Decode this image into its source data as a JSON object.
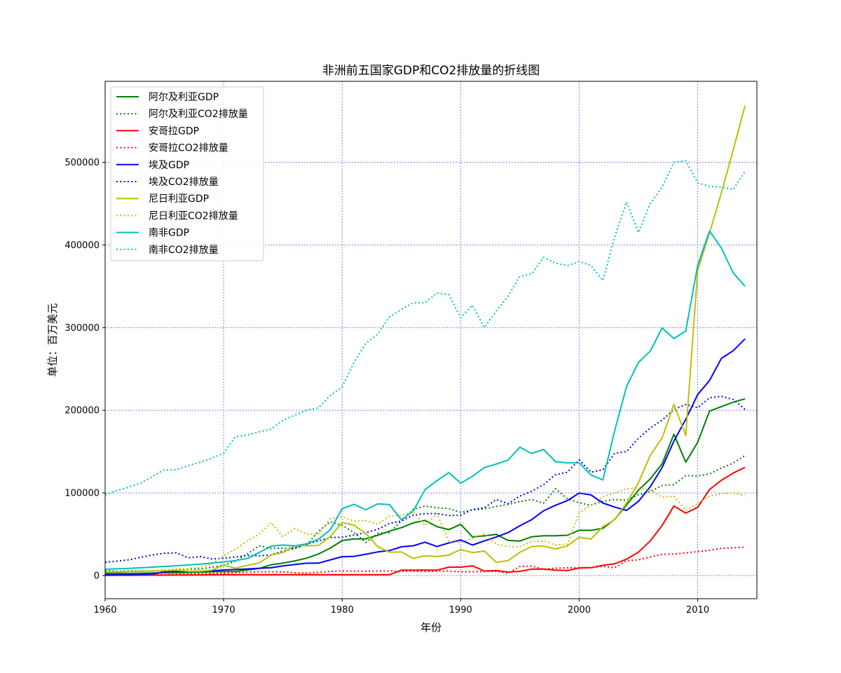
{
  "chart_data": {
    "type": "line",
    "title": "非洲前五国家GDP和CO2排放量的折线图",
    "xlabel": "年份",
    "ylabel": "单位：百万美元",
    "xlim": [
      1960,
      2015
    ],
    "ylim": [
      -28000,
      598000
    ],
    "xticks": [
      1960,
      1970,
      1980,
      1990,
      2000,
      2010
    ],
    "yticks": [
      0,
      100000,
      200000,
      300000,
      400000,
      500000
    ],
    "grid": true,
    "legend_position": "top-left",
    "years": [
      1960,
      1961,
      1962,
      1963,
      1964,
      1965,
      1966,
      1967,
      1968,
      1969,
      1970,
      1971,
      1972,
      1973,
      1974,
      1975,
      1976,
      1977,
      1978,
      1979,
      1980,
      1981,
      1982,
      1983,
      1984,
      1985,
      1986,
      1987,
      1988,
      1989,
      1990,
      1991,
      1992,
      1993,
      1994,
      1995,
      1996,
      1997,
      1998,
      1999,
      2000,
      2001,
      2002,
      2003,
      2004,
      2005,
      2006,
      2007,
      2008,
      2009,
      2010,
      2011,
      2012,
      2013,
      2014
    ],
    "series": [
      {
        "name": "阿尔及利亚GDP",
        "color": "#008000",
        "style": "solid",
        "values": [
          2700,
          2900,
          2500,
          2900,
          3100,
          3400,
          3500,
          3700,
          4100,
          4600,
          4800,
          5000,
          6700,
          8600,
          13000,
          15000,
          17700,
          21000,
          26100,
          33200,
          42300,
          44300,
          44400,
          48800,
          53700,
          57900,
          63700,
          66700,
          59100,
          55600,
          62000,
          46700,
          48000,
          49900,
          42500,
          41800,
          46900,
          48200,
          48200,
          48800,
          54800,
          54700,
          57100,
          68000,
          85300,
          103200,
          117000,
          135000,
          171000,
          137200,
          161200,
          199000,
          204300,
          209800,
          213800
        ]
      },
      {
        "name": "阿尔及利亚CO2排放量",
        "color": "#008000",
        "style": "dotted",
        "values": [
          6000,
          5200,
          5800,
          5500,
          5600,
          5700,
          6800,
          7500,
          8000,
          10100,
          12500,
          17500,
          26000,
          36000,
          33000,
          33200,
          33300,
          37000,
          53500,
          65000,
          61000,
          52000,
          40000,
          51000,
          52000,
          66000,
          80000,
          84000,
          82000,
          81000,
          76500,
          79500,
          80600,
          83700,
          86000,
          89500,
          92000,
          87500,
          105000,
          93000,
          88000,
          85000,
          90000,
          92000,
          91000,
          98000,
          101500,
          109000,
          110000,
          121000,
          120500,
          123000,
          130000,
          136000,
          145500
        ]
      },
      {
        "name": "安哥拉GDP",
        "color": "#ff0000",
        "style": "solid",
        "values": [
          200,
          300,
          300,
          400,
          400,
          500,
          700,
          700,
          800,
          900,
          1000,
          1000,
          1000,
          1000,
          1000,
          1000,
          1000,
          1000,
          1000,
          1000,
          1000,
          1000,
          1000,
          1000,
          1000,
          6500,
          6500,
          6500,
          6500,
          10200,
          10200,
          11800,
          5500,
          6000,
          4200,
          5100,
          7800,
          7700,
          6500,
          6100,
          9100,
          9500,
          12400,
          14200,
          19800,
          28200,
          41800,
          60500,
          84200,
          75500,
          82500,
          104100,
          115300,
          124000,
          131000
        ]
      },
      {
        "name": "安哥拉CO2排放量",
        "color": "#ff0000",
        "style": "dotted",
        "values": [
          600,
          650,
          700,
          750,
          1000,
          1200,
          1500,
          1700,
          2000,
          2500,
          3000,
          3500,
          4000,
          4500,
          4600,
          4500,
          3500,
          3000,
          4000,
          5000,
          5500,
          5300,
          5200,
          5400,
          5500,
          5200,
          5400,
          5000,
          5300,
          5500,
          4600,
          4600,
          5000,
          5200,
          3000,
          11000,
          11500,
          7600,
          9000,
          9300,
          9600,
          9700,
          11000,
          9500,
          18000,
          19000,
          22500,
          25500,
          26000,
          27500,
          29000,
          30500,
          33000,
          33500,
          34500
        ]
      },
      {
        "name": "埃及GDP",
        "color": "#0000ff",
        "style": "solid",
        "values": [
          1000,
          1100,
          1200,
          1300,
          1700,
          4500,
          5000,
          5100,
          5300,
          5600,
          6800,
          7300,
          8000,
          8800,
          9400,
          11600,
          13400,
          14900,
          15000,
          19000,
          22800,
          23200,
          25800,
          28600,
          30300,
          34800,
          36000,
          40400,
          35100,
          39400,
          43100,
          36900,
          41900,
          46600,
          52000,
          60200,
          67700,
          78400,
          85000,
          90700,
          99800,
          97500,
          87800,
          82900,
          78800,
          89700,
          107400,
          130500,
          162800,
          189000,
          219000,
          236000,
          262800,
          272000,
          286400
        ]
      },
      {
        "name": "埃及CO2排放量",
        "color": "#0000ff",
        "style": "dotted",
        "values": [
          16000,
          17500,
          19000,
          22000,
          25000,
          27000,
          27500,
          21500,
          23000,
          20000,
          21000,
          22500,
          24300,
          24000,
          25000,
          29500,
          33000,
          38000,
          42000,
          46000,
          46300,
          49000,
          52000,
          56000,
          63000,
          66000,
          73000,
          75000,
          75000,
          72600,
          73000,
          80000,
          82000,
          92000,
          87000,
          96000,
          102000,
          110000,
          122000,
          125000,
          140000,
          125000,
          128000,
          148000,
          150000,
          166000,
          178500,
          188000,
          201000,
          207000,
          203000,
          215000,
          217000,
          213000,
          201000
        ]
      },
      {
        "name": "尼日利亚GDP",
        "color": "#bfbf00",
        "style": "solid",
        "values": [
          4200,
          4500,
          4900,
          5300,
          5600,
          5900,
          6400,
          5200,
          5200,
          6600,
          12500,
          9000,
          12300,
          15200,
          24800,
          27800,
          36000,
          36000,
          36500,
          47200,
          64200,
          61000,
          51000,
          35000,
          28300,
          28600,
          20700,
          24000,
          23100,
          24800,
          31500,
          27800,
          29700,
          16000,
          18000,
          28100,
          35200,
          35700,
          32100,
          35900,
          46300,
          44100,
          59100,
          67600,
          87800,
          112200,
          145400,
          166400,
          207100,
          169500,
          369100,
          414500,
          463000,
          515000,
          568500
        ]
      },
      {
        "name": "尼日利亚CO2排放量",
        "color": "#bfbf00",
        "style": "dotted",
        "values": [
          4000,
          4300,
          4600,
          5000,
          5500,
          6500,
          8000,
          8400,
          10000,
          14000,
          24000,
          32000,
          42000,
          50000,
          64000,
          47000,
          57000,
          50000,
          50000,
          69000,
          71000,
          66000,
          66500,
          62000,
          72000,
          73000,
          77000,
          60500,
          75000,
          41000,
          40000,
          45000,
          50000,
          38000,
          35000,
          35000,
          41000,
          42000,
          37000,
          38000,
          76000,
          85000,
          95000,
          100000,
          105000,
          106000,
          103000,
          95000,
          96000,
          79000,
          87000,
          96000,
          99000,
          100000,
          96500
        ]
      },
      {
        "name": "南非GDP",
        "color": "#00bfbf",
        "style": "solid",
        "values": [
          7600,
          8100,
          8700,
          9400,
          10200,
          11000,
          11900,
          12800,
          13800,
          15100,
          16500,
          18100,
          20600,
          27800,
          35500,
          37000,
          35900,
          38400,
          43900,
          55400,
          81000,
          86200,
          79600,
          86700,
          85900,
          67400,
          78000,
          104100,
          114800,
          124600,
          111700,
          120200,
          130500,
          134900,
          139700,
          155300,
          147600,
          152600,
          137800,
          136400,
          136400,
          121600,
          115700,
          175300,
          228600,
          257800,
          271600,
          299400,
          286800,
          295900,
          375300,
          416900,
          396300,
          366300,
          350100
        ]
      },
      {
        "name": "南非CO2排放量",
        "color": "#00bfbf",
        "style": "dotted",
        "values": [
          98000,
          103000,
          107000,
          112000,
          120000,
          128000,
          128000,
          133000,
          137000,
          142000,
          148000,
          168000,
          170000,
          174000,
          177000,
          188000,
          194000,
          200000,
          203000,
          218000,
          228000,
          258000,
          281000,
          292000,
          313000,
          322000,
          330000,
          330000,
          342000,
          340000,
          312000,
          327000,
          300000,
          320000,
          338000,
          362000,
          365000,
          385000,
          378000,
          375000,
          380000,
          375000,
          357000,
          410000,
          452000,
          415000,
          450000,
          470000,
          500000,
          502000,
          475000,
          471000,
          470000,
          467000,
          489000
        ]
      }
    ]
  }
}
